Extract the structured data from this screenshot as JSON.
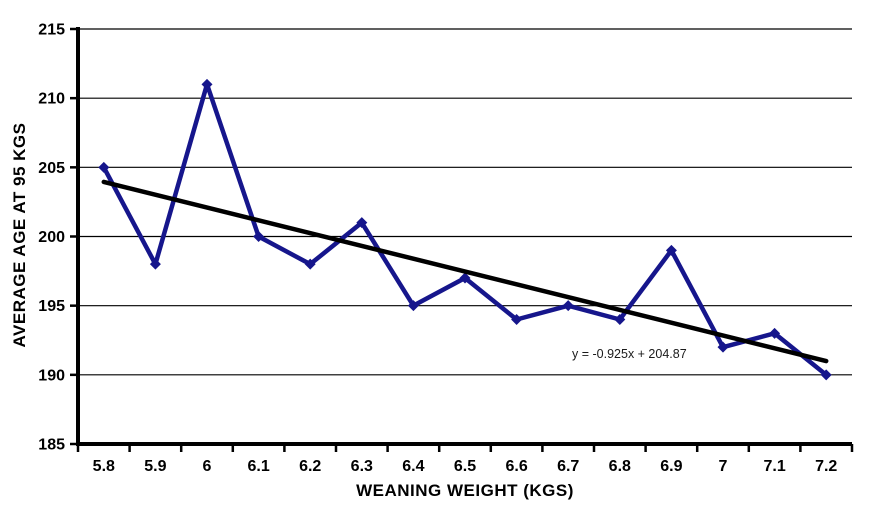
{
  "chart_data": {
    "type": "line",
    "title": "",
    "xlabel": "WEANING WEIGHT (KGS)",
    "ylabel": "AVERAGE AGE AT 95 KGS",
    "categories": [
      "5.8",
      "5.9",
      "6",
      "6.1",
      "6.2",
      "6.3",
      "6.4",
      "6.5",
      "6.6",
      "6.7",
      "6.8",
      "6.9",
      "7",
      "7.1",
      "7.2"
    ],
    "series": [
      {
        "name": "Average age at 95 kgs",
        "values": [
          205,
          198,
          211,
          200,
          198,
          201,
          195,
          197,
          194,
          195,
          194,
          199,
          192,
          193,
          190
        ]
      }
    ],
    "ylim": [
      185,
      215
    ],
    "yticks": [
      185,
      190,
      195,
      200,
      205,
      210,
      215
    ],
    "grid": "horizontal",
    "legend": "none",
    "marker": "diamond",
    "trendline": {
      "type": "linear",
      "equation": "y = -0.925x + 204.87",
      "slope": -0.925,
      "intercept": 204.87,
      "x_basis": "category-index-1-based"
    },
    "colors": {
      "series": "#16168C",
      "trendline": "#000000",
      "axis": "#000000",
      "gridline": "#000000",
      "background": "#FFFFFF",
      "text": "#000000"
    }
  }
}
